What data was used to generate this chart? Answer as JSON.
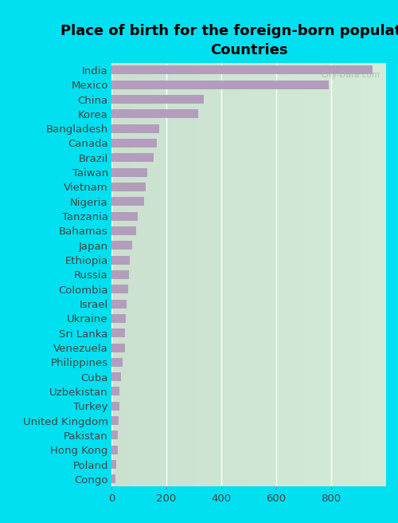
{
  "title": "Place of birth for the foreign-born population -\nCountries",
  "countries": [
    "India",
    "Mexico",
    "China",
    "Korea",
    "Bangladesh",
    "Canada",
    "Brazil",
    "Taiwan",
    "Vietnam",
    "Nigeria",
    "Tanzania",
    "Bahamas",
    "Japan",
    "Ethiopia",
    "Russia",
    "Colombia",
    "Israel",
    "Ukraine",
    "Sri Lanka",
    "Venezuela",
    "Philippines",
    "Cuba",
    "Uzbekistan",
    "Turkey",
    "United Kingdom",
    "Pakistan",
    "Hong Kong",
    "Poland",
    "Congo"
  ],
  "values": [
    950,
    790,
    335,
    315,
    175,
    165,
    155,
    130,
    125,
    120,
    95,
    90,
    75,
    68,
    65,
    60,
    55,
    52,
    50,
    48,
    42,
    35,
    30,
    28,
    26,
    24,
    22,
    18,
    15
  ],
  "bar_color": "#b39dbd",
  "plot_bg": "#e8f5e9",
  "outer_bg": "#00e0f0",
  "xlim": [
    0,
    1000
  ],
  "xticks": [
    0,
    200,
    400,
    600,
    800
  ],
  "title_fontsize": 13,
  "tick_fontsize": 9.5,
  "label_fontsize": 9.5,
  "watermark": "City-Data.com"
}
